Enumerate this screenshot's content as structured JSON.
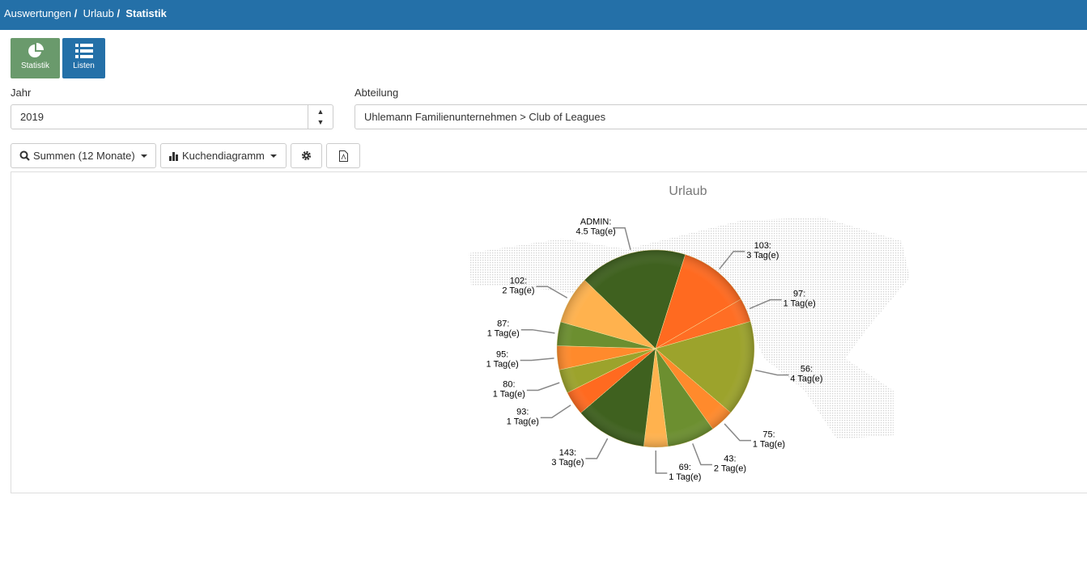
{
  "breadcrumb": [
    "Auswertungen",
    "Urlaub",
    "Statistik"
  ],
  "tiles": {
    "statistik": "Statistik",
    "listen": "Listen"
  },
  "filters": {
    "year_label": "Jahr",
    "year_value": "2019",
    "dept_label": "Abteilung",
    "dept_value": "Uhlemann Familienunternehmen > Club of Leagues"
  },
  "toolbar": {
    "sums": "Summen (12 Monate)",
    "chart_type": "Kuchendiagramm"
  },
  "chart_data": {
    "type": "pie",
    "title": "Urlaub",
    "unit": "Tag(e)",
    "slices": [
      {
        "name": "ADMIN",
        "value": 4.5,
        "color": "#3f611f"
      },
      {
        "name": "103",
        "value": 3,
        "color": "#ff6a20"
      },
      {
        "name": "97",
        "value": 1,
        "color": "#ff6e24"
      },
      {
        "name": "56",
        "value": 4,
        "color": "#9ca32c"
      },
      {
        "name": "75",
        "value": 1,
        "color": "#ff8a2c"
      },
      {
        "name": "43",
        "value": 2,
        "color": "#6c8f30"
      },
      {
        "name": "69",
        "value": 1,
        "color": "#ffb24e"
      },
      {
        "name": "143",
        "value": 3,
        "color": "#3f611f"
      },
      {
        "name": "93",
        "value": 1,
        "color": "#ff6a20"
      },
      {
        "name": "80",
        "value": 1,
        "color": "#9ca32c"
      },
      {
        "name": "95",
        "value": 1,
        "color": "#ff8a2c"
      },
      {
        "name": "87",
        "value": 1,
        "color": "#6c8f30"
      },
      {
        "name": "102",
        "value": 2,
        "color": "#ffb24e"
      }
    ]
  }
}
